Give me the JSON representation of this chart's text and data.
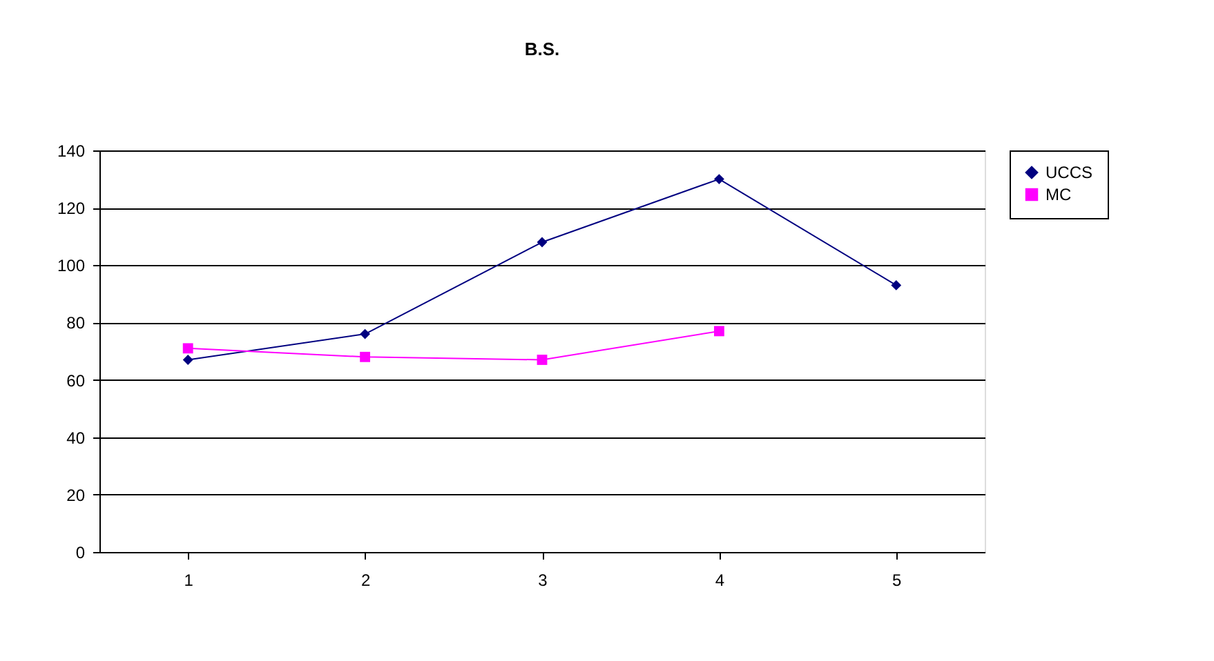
{
  "chart_data": {
    "type": "line",
    "title": "B.S.",
    "categories": [
      "1",
      "2",
      "3",
      "4",
      "5"
    ],
    "series": [
      {
        "name": "UCCS",
        "color": "#000080",
        "marker": "diamond",
        "values": [
          67,
          76,
          108,
          130,
          93
        ]
      },
      {
        "name": "MC",
        "color": "#ff00ff",
        "marker": "square",
        "values": [
          71,
          68,
          67,
          77,
          null
        ]
      }
    ],
    "ylim": [
      0,
      140
    ],
    "yticks": [
      0,
      20,
      40,
      60,
      80,
      100,
      120,
      140
    ],
    "grid": "y",
    "legend": "right",
    "line_style": "solid"
  }
}
